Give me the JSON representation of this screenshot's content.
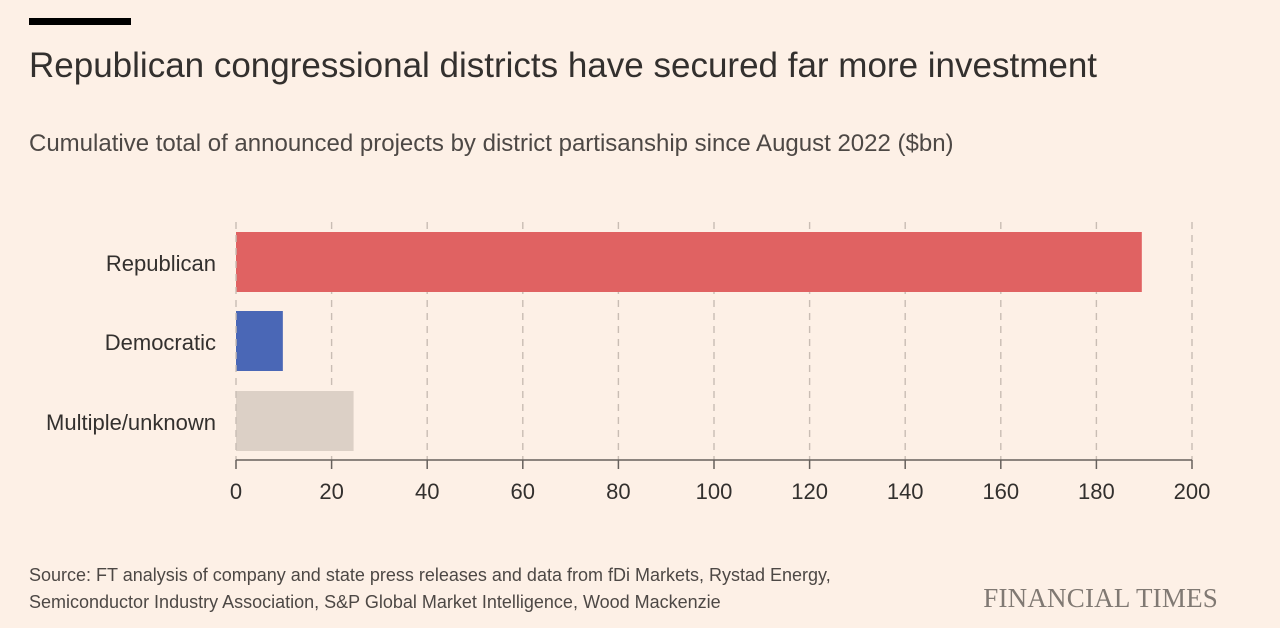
{
  "title": "Republican congressional districts have secured far more investment",
  "subtitle": "Cumulative total of announced projects by district partisanship since August 2022 ($bn)",
  "source_lines": [
    "Source: FT analysis of company and state press releases and data from fDi Markets, Rystad Energy,",
    "Semiconductor Industry Association, S&P Global Market Intelligence, Wood Mackenzie"
  ],
  "brand": "FINANCIAL TIMES",
  "colors": {
    "background": "#fdf0e6",
    "republican": "#e06262",
    "democratic": "#4a67b6",
    "other": "#dcd0c6",
    "grid": "#c9bdb4",
    "axis": "#66605c"
  },
  "chart_data": {
    "type": "bar",
    "orientation": "horizontal",
    "categories": [
      "Republican",
      "Democratic",
      "Multiple/unknown"
    ],
    "values": [
      189.5,
      9.8,
      24.6
    ],
    "bar_colors": [
      "#e06262",
      "#4a67b6",
      "#dcd0c6"
    ],
    "xlim": [
      0,
      200
    ],
    "xticks": [
      0,
      20,
      40,
      60,
      80,
      100,
      120,
      140,
      160,
      180,
      200
    ],
    "xtick_labels": [
      "0",
      "20",
      "40",
      "60",
      "80",
      "100",
      "120",
      "140",
      "160",
      "180",
      "200"
    ],
    "grid": "vertical dashed",
    "xlabel": "",
    "ylabel": ""
  }
}
